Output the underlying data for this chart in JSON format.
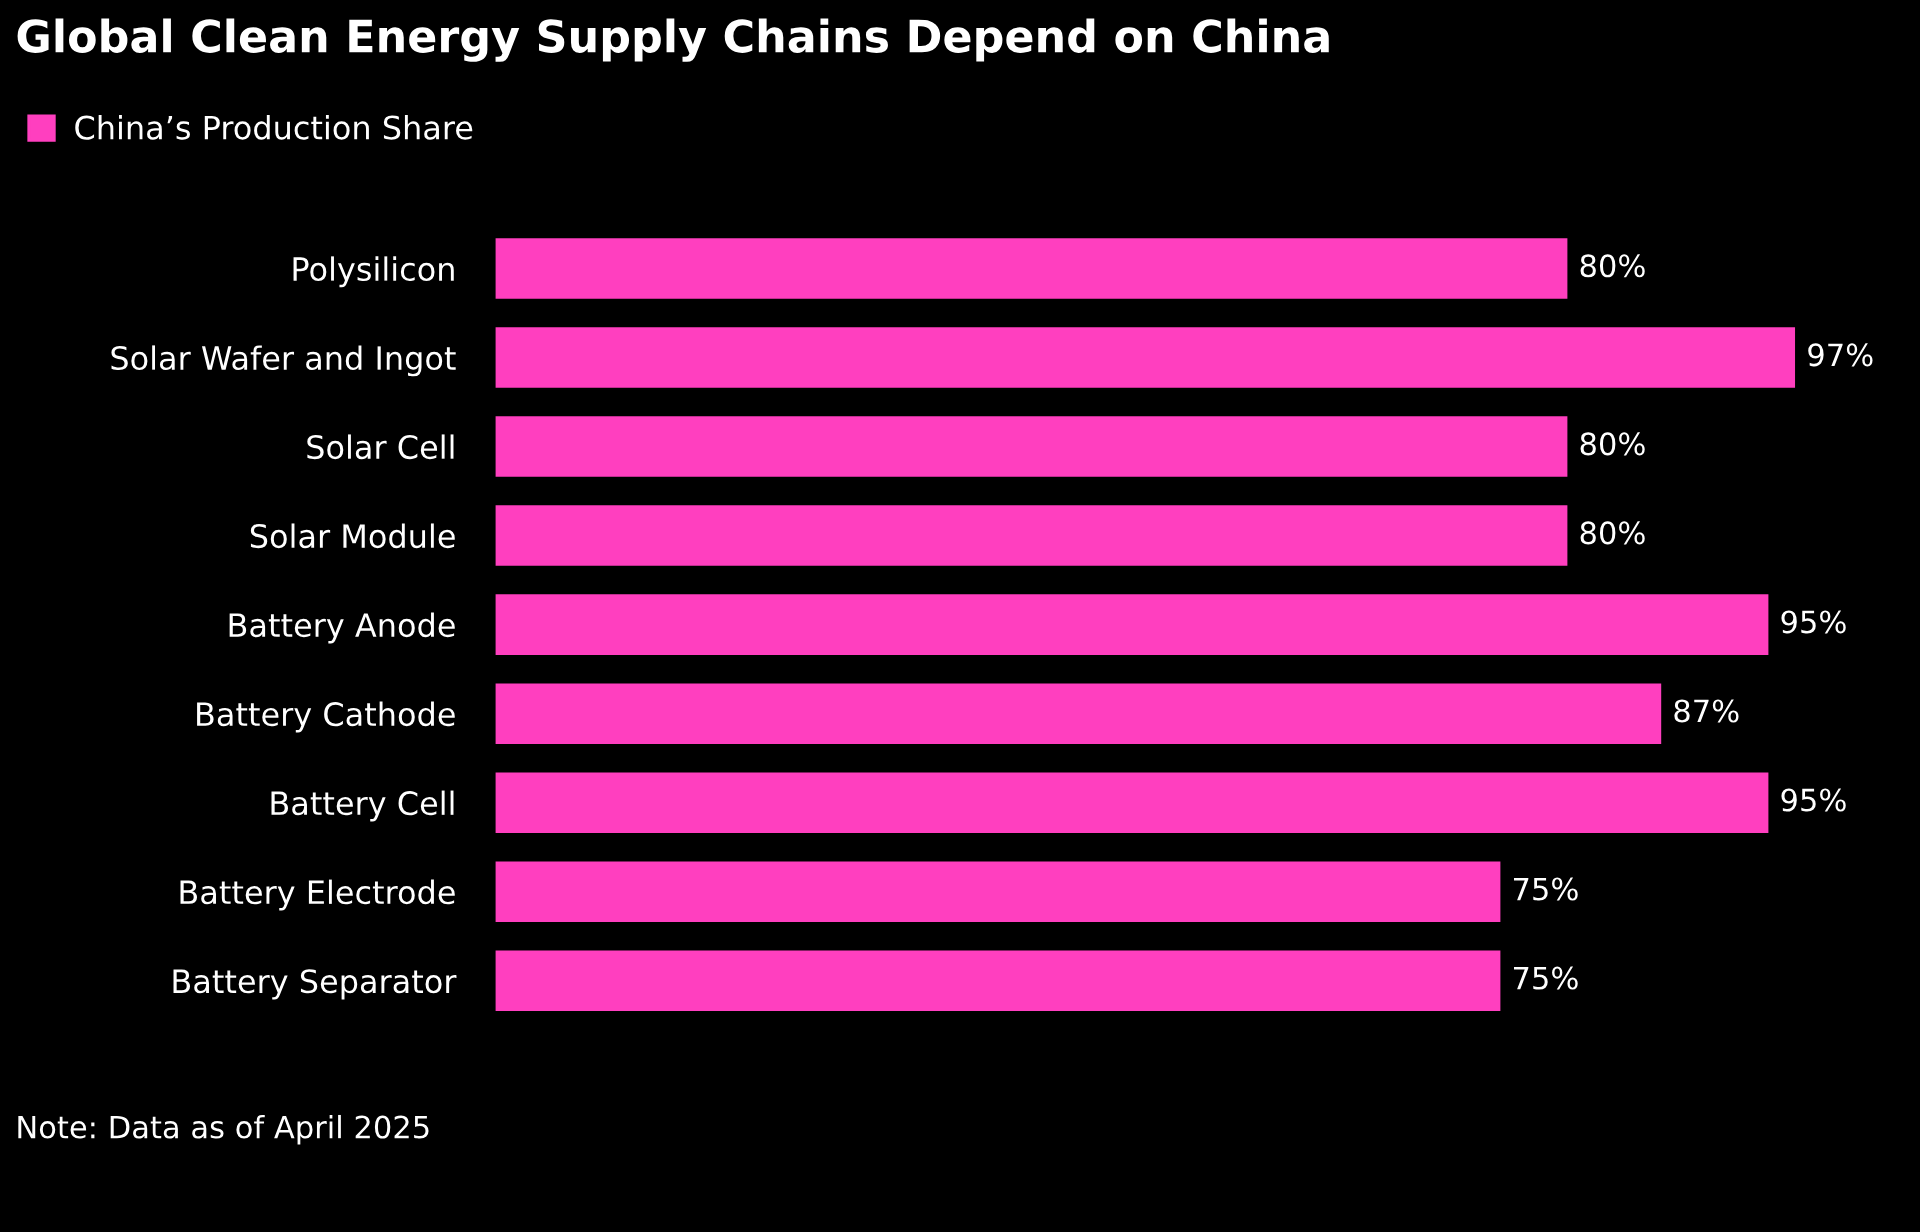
{
  "chart_data": {
    "type": "bar",
    "orientation": "horizontal",
    "title": "Global Clean Energy Supply Chains Depend on China",
    "categories": [
      "Polysilicon",
      "Solar Wafer and Ingot",
      "Solar Cell",
      "Solar Module",
      "Battery Anode",
      "Battery Cathode",
      "Battery Cell",
      "Battery Electrode",
      "Battery Separator"
    ],
    "series": [
      {
        "name": "China’s Production Share",
        "color": "#ff3fbf",
        "values": [
          80,
          97,
          80,
          80,
          95,
          87,
          95,
          75,
          75
        ],
        "value_labels": [
          "80%",
          "97%",
          "80%",
          "80%",
          "95%",
          "87%",
          "95%",
          "75%",
          "75%"
        ]
      }
    ],
    "legend": "top left",
    "grid": false,
    "annotations": [
      "Note: Data as of April 2025"
    ]
  }
}
